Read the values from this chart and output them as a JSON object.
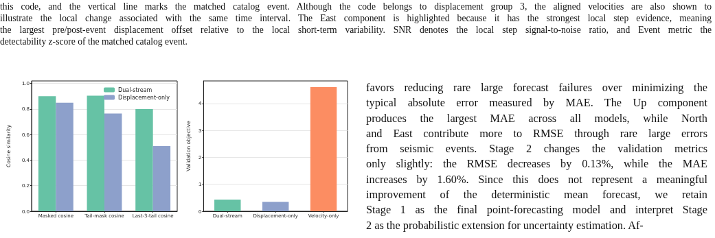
{
  "chart_data": [
    {
      "type": "other",
      "annotations": [
        "this code, and the vertical line marks the matched catalog event. Although the code belongs to displacement group 3, the aligned velocities are also shown to",
        "illustrate the local change associated with the same time interval. The East component is highlighted because it has the strongest local step evidence, meaning",
        "the largest pre/post-event displacement offset relative to the local short-term variability. SNR denotes the local step signal-to-noise ratio, and Event metric the",
        "detectability z-score of the matched catalog event."
      ]
    },
    {
      "type": "bar",
      "categories": [
        "Masked cosine",
        "Tail-mask cosine",
        "Last-3-tail cosine"
      ],
      "ylabel": "Cosine similarity",
      "ylim": [
        0,
        1.02
      ],
      "yticks": [
        {
          "value": 0,
          "label": "0.0"
        },
        0.2,
        0.4,
        0.6,
        0.8,
        {
          "value": 1,
          "label": "1.0"
        }
      ],
      "grid": "y",
      "legend": "top right",
      "series": [
        {
          "name": "Dual-stream",
          "color": "#66c2a5",
          "values": [
            0.9,
            0.905,
            0.8
          ]
        },
        {
          "name": "Displacement-only",
          "color": "#8da0cb",
          "values": [
            0.85,
            0.765,
            0.51
          ]
        }
      ]
    },
    {
      "type": "bar",
      "categories": [
        "Dual-stream",
        "Displacement-only",
        "Velocity-only"
      ],
      "ylabel": "Validation objective",
      "ylim": [
        0,
        4.84
      ],
      "yticks": [
        0,
        1,
        2,
        3,
        4
      ],
      "grid": "y",
      "values": [
        0.43,
        0.35,
        4.61
      ],
      "colors": [
        "#66c2a5",
        "#8da0cb",
        "#fc8d62"
      ]
    },
    {
      "type": "other",
      "annotations": [
        "favors reducing rare large forecast failures over minimizing the",
        "typical absolute error measured by MAE. The Up component",
        "produces the largest MAE across all models, while North",
        "and East contribute more to RMSE through rare large errors",
        "from seismic events. Stage 2 changes the validation metrics",
        "only slightly: the RMSE decreases by 0.13%, while the MAE",
        "increases by 1.60%. Since this does not represent a meaningful",
        "improvement of the deterministic mean forecast, we retain",
        "Stage 1 as the final point-forecasting model and interpret Stage",
        "2 as the probabilistic extension for uncertainty estimation. Af-"
      ]
    }
  ]
}
